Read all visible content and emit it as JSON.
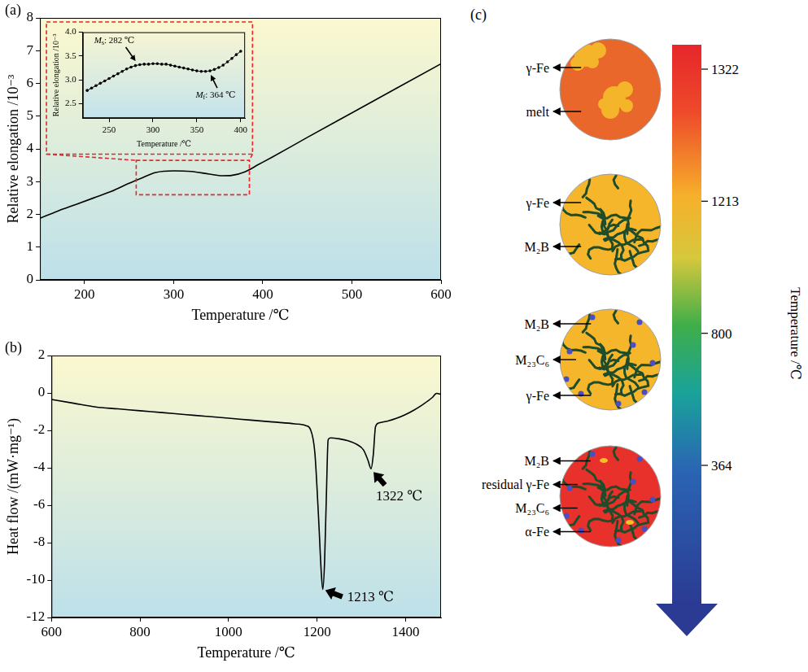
{
  "chart_data": [
    {
      "panel": "(a)",
      "type": "line",
      "x_label": "Temperature /℃",
      "y_label": "Relative elongation /10⁻³",
      "xlim": [
        150,
        600
      ],
      "xticks": [
        200,
        300,
        400,
        500,
        600
      ],
      "ylim": [
        0,
        8
      ],
      "yticks": [
        0,
        1,
        2,
        3,
        4,
        5,
        6,
        7,
        8
      ],
      "grid": false,
      "color": "#000000",
      "line_style": "solid",
      "x": [
        150,
        170,
        190,
        210,
        230,
        250,
        265,
        280,
        300,
        320,
        340,
        355,
        365,
        380,
        395,
        410,
        450,
        500,
        550,
        600
      ],
      "values": [
        1.88,
        2.1,
        2.3,
        2.5,
        2.7,
        2.95,
        3.12,
        3.28,
        3.33,
        3.31,
        3.23,
        3.18,
        3.19,
        3.3,
        3.52,
        3.74,
        4.35,
        5.1,
        5.85,
        6.6
      ],
      "zoom_box": {
        "xlim": [
          258,
          385
        ],
        "ylim": [
          2.6,
          3.65
        ]
      },
      "inset": {
        "type": "line",
        "x_label": "Temperature /℃",
        "y_label": "Relative elongation /10⁻³",
        "xlim": [
          220,
          405
        ],
        "xticks": [
          250,
          300,
          350,
          400
        ],
        "ylim": [
          2.2,
          4.0
        ],
        "yticks": [
          2.5,
          {
            "value": 3,
            "label": "3.0"
          },
          3.5,
          {
            "value": 4,
            "label": "4.0"
          }
        ],
        "grid": false,
        "color": "#000000",
        "marker": "circle",
        "line_style": "solid",
        "x": [
          225,
          230,
          235,
          240,
          245,
          250,
          255,
          260,
          265,
          270,
          275,
          280,
          285,
          290,
          295,
          300,
          305,
          310,
          315,
          320,
          325,
          330,
          335,
          340,
          345,
          350,
          355,
          360,
          365,
          370,
          375,
          380,
          385,
          390,
          395,
          400
        ],
        "values": [
          2.78,
          2.83,
          2.88,
          2.93,
          2.98,
          3.03,
          3.08,
          3.13,
          3.18,
          3.23,
          3.27,
          3.3,
          3.32,
          3.33,
          3.33,
          3.34,
          3.34,
          3.33,
          3.33,
          3.31,
          3.29,
          3.27,
          3.25,
          3.23,
          3.21,
          3.19,
          3.18,
          3.18,
          3.19,
          3.22,
          3.26,
          3.31,
          3.38,
          3.45,
          3.53,
          3.6
        ],
        "annotations": [
          {
            "text": "Ms: 282 ℃",
            "x": 282,
            "y": 3.31
          },
          {
            "text": "Mf: 364 ℃",
            "x": 364,
            "y": 3.19
          }
        ]
      }
    },
    {
      "panel": "(b)",
      "type": "line",
      "x_label": "Temperature /℃",
      "y_label": "Heat flow /(mW·mg⁻¹)",
      "xlim": [
        600,
        1480
      ],
      "xticks": [
        600,
        800,
        1000,
        1200,
        1400
      ],
      "ylim": [
        -12,
        2
      ],
      "yticks": [
        -12,
        -10,
        -8,
        -6,
        -4,
        -2,
        0,
        2
      ],
      "grid": false,
      "color": "#000000",
      "line_style": "solid",
      "x": [
        600,
        650,
        700,
        750,
        800,
        850,
        900,
        950,
        1000,
        1050,
        1100,
        1150,
        1175,
        1185,
        1195,
        1203,
        1210,
        1213,
        1217,
        1221,
        1225,
        1230,
        1250,
        1270,
        1290,
        1305,
        1315,
        1322,
        1327,
        1332,
        1340,
        1360,
        1380,
        1400,
        1420,
        1440,
        1460,
        1470,
        1480
      ],
      "values": [
        -0.35,
        -0.55,
        -0.75,
        -0.85,
        -0.95,
        -1.05,
        -1.15,
        -1.25,
        -1.35,
        -1.45,
        -1.55,
        -1.65,
        -1.75,
        -1.95,
        -3.2,
        -6.5,
        -9.8,
        -10.5,
        -9.0,
        -5.5,
        -2.5,
        -2.4,
        -2.45,
        -2.55,
        -2.75,
        -3.05,
        -3.6,
        -4.05,
        -3.3,
        -1.8,
        -1.6,
        -1.5,
        -1.35,
        -1.15,
        -0.9,
        -0.6,
        -0.25,
        -0.02,
        -0.08
      ],
      "annotations": [
        {
          "text": "1213 ℃",
          "x": 1213,
          "y": -10.5
        },
        {
          "text": "1322 ℃",
          "x": 1322,
          "y": -4.05
        }
      ]
    }
  ],
  "diagram": {
    "panel": "(c)",
    "stages": [
      {
        "labels": [
          "γ-Fe",
          "melt"
        ]
      },
      {
        "labels": [
          "γ-Fe",
          "M₂B"
        ]
      },
      {
        "labels": [
          "M₂B",
          "M₂₃C₆",
          "γ-Fe"
        ]
      },
      {
        "labels": [
          "M₂B",
          "residual γ-Fe",
          "M₂₃C₆",
          "α-Fe"
        ]
      }
    ],
    "temperature_bar": {
      "title": "Temperature /℃",
      "ticks": [
        1322,
        1213,
        800,
        364
      ]
    }
  }
}
